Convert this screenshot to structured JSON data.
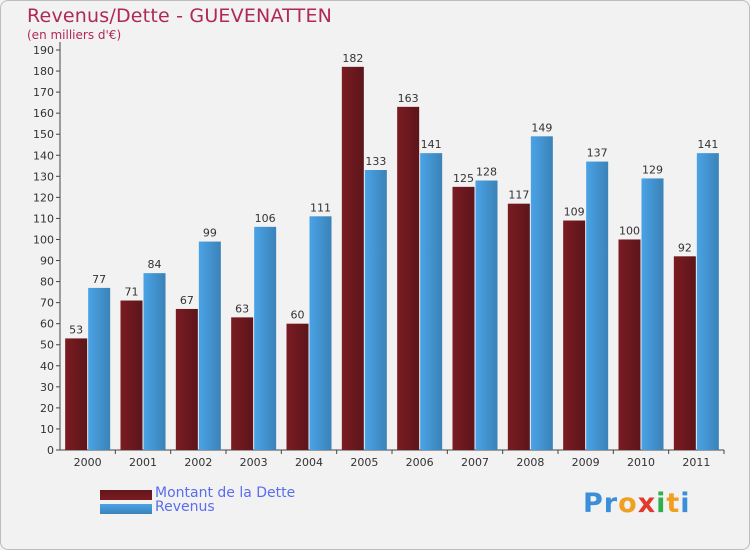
{
  "title": "Revenus/Dette - GUEVENATTEN",
  "subtitle": "(en milliers d'€)",
  "colors": {
    "dette": "#7a1c22",
    "revenus": "#4aa3e6",
    "title": "#b0275a",
    "legend_text": "#5a6cf0"
  },
  "legend": {
    "dette_label": "Montant de la Dette",
    "revenus_label": "Revenus"
  },
  "logo": {
    "text": "Proxiti",
    "letter_colors": [
      "#3a8fd8",
      "#3a8fd8",
      "#f0a020",
      "#e23a2a",
      "#2bb04a",
      "#f0a020",
      "#3a8fd8"
    ]
  },
  "chart_data": {
    "type": "bar",
    "categories": [
      "2000",
      "2001",
      "2002",
      "2003",
      "2004",
      "2005",
      "2006",
      "2007",
      "2008",
      "2009",
      "2010",
      "2011"
    ],
    "series": [
      {
        "name": "Montant de la Dette",
        "color": "#7a1c22",
        "values": [
          53,
          71,
          67,
          63,
          60,
          182,
          163,
          125,
          117,
          109,
          100,
          92
        ]
      },
      {
        "name": "Revenus",
        "color": "#4aa3e6",
        "values": [
          77,
          84,
          99,
          106,
          111,
          133,
          141,
          128,
          149,
          137,
          129,
          141
        ]
      }
    ],
    "ylim": [
      0,
      190
    ],
    "ytick_step": 10,
    "grid": false,
    "legend_position": "bottom-left"
  }
}
